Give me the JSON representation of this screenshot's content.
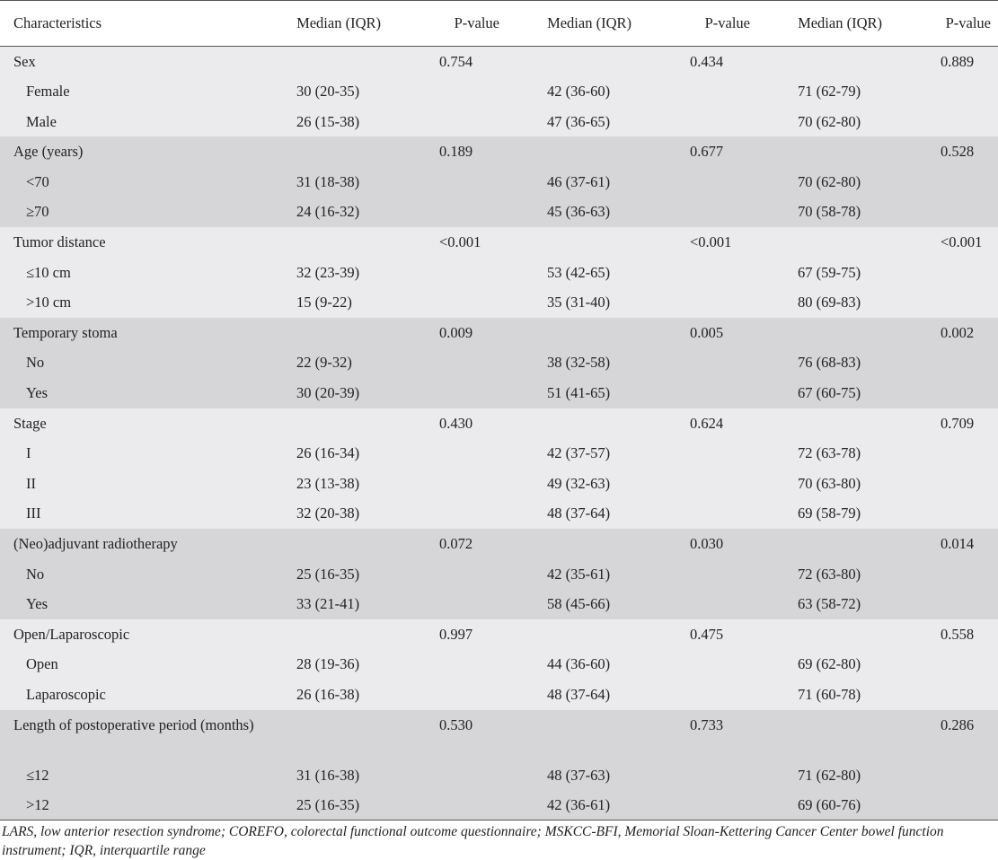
{
  "header": {
    "characteristics": "Characteristics",
    "median1": "Median  (IQR)",
    "p1": "P-value",
    "median2": "Median  (IQR)",
    "p2": "P-value",
    "median3": "Median  (IQR)",
    "p3": "P-value"
  },
  "groups": [
    {
      "label": "Sex",
      "p": [
        "0.754",
        "0.434",
        "0.889"
      ],
      "rows": [
        {
          "label": "Female",
          "values": [
            "30 (20-35)",
            "42 (36-60)",
            "71 (62-79)"
          ]
        },
        {
          "label": "Male",
          "values": [
            "26 (15-38)",
            "47 (36-65)",
            "70 (62-80)"
          ]
        }
      ]
    },
    {
      "label": "Age (years)",
      "p": [
        "0.189",
        "0.677",
        "0.528"
      ],
      "rows": [
        {
          "label": "<70",
          "values": [
            "31 (18-38)",
            "46 (37-61)",
            "70 (62-80)"
          ]
        },
        {
          "label": "≥70",
          "values": [
            "24 (16-32)",
            "45 (36-63)",
            "70 (58-78)"
          ]
        }
      ]
    },
    {
      "label": "Tumor distance",
      "p": [
        "<0.001",
        "<0.001",
        "<0.001"
      ],
      "rows": [
        {
          "label": "≤10 cm",
          "values": [
            "32 (23-39)",
            "53 (42-65)",
            "67 (59-75)"
          ]
        },
        {
          "label": ">10 cm",
          "values": [
            "15 (9-22)",
            "35 (31-40)",
            "80 (69-83)"
          ]
        }
      ]
    },
    {
      "label": "Temporary stoma",
      "p": [
        "0.009",
        "0.005",
        "0.002"
      ],
      "rows": [
        {
          "label": "No",
          "values": [
            "22 (9-32)",
            "38 (32-58)",
            "76 (68-83)"
          ]
        },
        {
          "label": "Yes",
          "values": [
            "30 (20-39)",
            "51 (41-65)",
            "67 (60-75)"
          ]
        }
      ]
    },
    {
      "label": "Stage",
      "p": [
        "0.430",
        "0.624",
        "0.709"
      ],
      "rows": [
        {
          "label": "I",
          "values": [
            "26 (16-34)",
            "42 (37-57)",
            "72 (63-78)"
          ]
        },
        {
          "label": "II",
          "values": [
            "23 (13-38)",
            "49 (32-63)",
            "70 (63-80)"
          ]
        },
        {
          "label": "III",
          "values": [
            "32 (20-38)",
            "48 (37-64)",
            "69 (58-79)"
          ]
        }
      ]
    },
    {
      "label": "(Neo)adjuvant radiotherapy",
      "p": [
        "0.072",
        "0.030",
        "0.014"
      ],
      "rows": [
        {
          "label": "No",
          "values": [
            "25 (16-35)",
            "42 (35-61)",
            "72 (63-80)"
          ]
        },
        {
          "label": "Yes",
          "values": [
            "33 (21-41)",
            "58 (45-66)",
            "63 (58-72)"
          ]
        }
      ]
    },
    {
      "label": "Open/Laparoscopic",
      "p": [
        "0.997",
        "0.475",
        "0.558"
      ],
      "rows": [
        {
          "label": "Open",
          "values": [
            "28 (19-36)",
            "44 (36-60)",
            "69 (62-80)"
          ]
        },
        {
          "label": "Laparoscopic",
          "values": [
            "26 (16-38)",
            "48 (37-64)",
            "71 (60-78)"
          ]
        }
      ]
    },
    {
      "label": "Length of postoperative period (months)",
      "p": [
        "0.530",
        "0.733",
        "0.286"
      ],
      "rows": [
        {
          "label": "≤12",
          "values": [
            "31 (16-38)",
            "48 (37-63)",
            "71 (62-80)"
          ]
        },
        {
          "label": ">12",
          "values": [
            "25 (16-35)",
            "42 (36-61)",
            "69 (60-76)"
          ]
        }
      ]
    }
  ],
  "footnote": "LARS, low anterior resection syndrome; COREFO, colorectal functional outcome questionnaire; MSKCC-BFI, Memorial Sloan-Kettering Cancer Center bowel function instrument; IQR, interquartile range",
  "colors": {
    "band_light": "#ebebee",
    "band_dark": "#d6d6d9",
    "rule": "#555555",
    "text": "#222222"
  }
}
